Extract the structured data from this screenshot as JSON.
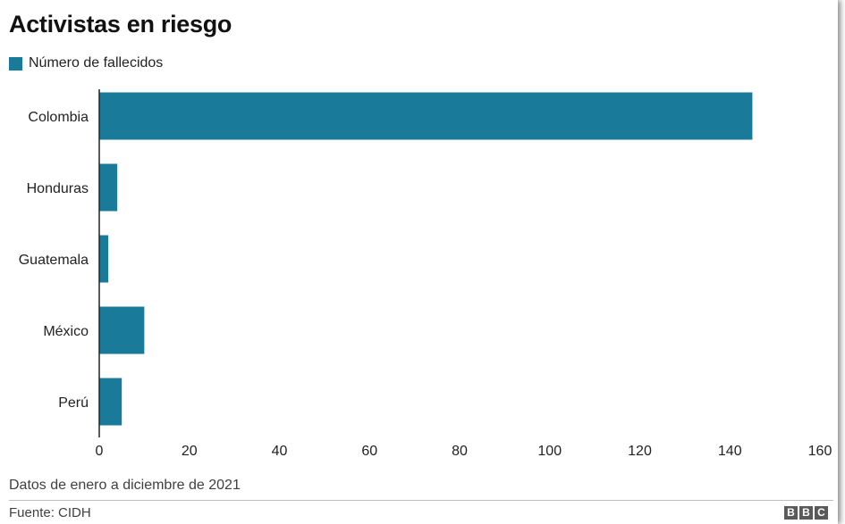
{
  "header": {
    "title": "Activistas en riesgo"
  },
  "legend": {
    "label": "Número de fallecidos",
    "color": "#1a7a9a"
  },
  "chart_data": {
    "type": "bar",
    "orientation": "horizontal",
    "title": "Activistas en riesgo",
    "categories": [
      "Colombia",
      "Honduras",
      "Guatemala",
      "México",
      "Perú"
    ],
    "series": [
      {
        "name": "Número de fallecidos",
        "values": [
          145,
          4,
          2,
          10,
          5
        ],
        "color": "#1a7a9a"
      }
    ],
    "xlim": [
      0,
      160
    ],
    "xticks": [
      0,
      20,
      40,
      60,
      80,
      100,
      120,
      140,
      160
    ],
    "xlabel": "",
    "ylabel": "",
    "grid": false,
    "legend_position": "top-left"
  },
  "footer": {
    "note": "Datos de enero a diciembre de 2021",
    "source": "Fuente: CIDH",
    "logo_letters": [
      "B",
      "B",
      "C"
    ]
  }
}
